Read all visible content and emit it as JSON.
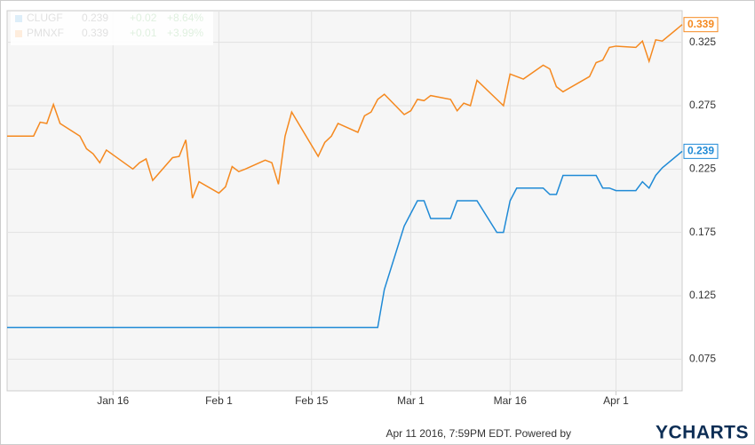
{
  "chart_data": {
    "type": "line",
    "x": [
      "2015-12-31",
      "2016-01-04",
      "2016-01-05",
      "2016-01-06",
      "2016-01-07",
      "2016-01-08",
      "2016-01-11",
      "2016-01-12",
      "2016-01-13",
      "2016-01-14",
      "2016-01-15",
      "2016-01-19",
      "2016-01-20",
      "2016-01-21",
      "2016-01-22",
      "2016-01-25",
      "2016-01-26",
      "2016-01-27",
      "2016-01-28",
      "2016-01-29",
      "2016-02-01",
      "2016-02-02",
      "2016-02-03",
      "2016-02-04",
      "2016-02-05",
      "2016-02-08",
      "2016-02-09",
      "2016-02-10",
      "2016-02-11",
      "2016-02-12",
      "2016-02-16",
      "2016-02-17",
      "2016-02-18",
      "2016-02-19",
      "2016-02-22",
      "2016-02-23",
      "2016-02-24",
      "2016-02-25",
      "2016-02-26",
      "2016-02-29",
      "2016-03-01",
      "2016-03-02",
      "2016-03-03",
      "2016-03-04",
      "2016-03-07",
      "2016-03-08",
      "2016-03-09",
      "2016-03-10",
      "2016-03-11",
      "2016-03-14",
      "2016-03-15",
      "2016-03-16",
      "2016-03-17",
      "2016-03-18",
      "2016-03-21",
      "2016-03-22",
      "2016-03-23",
      "2016-03-24",
      "2016-03-28",
      "2016-03-29",
      "2016-03-30",
      "2016-03-31",
      "2016-04-01",
      "2016-04-04",
      "2016-04-05",
      "2016-04-06",
      "2016-04-07",
      "2016-04-08",
      "2016-04-11"
    ],
    "series": [
      {
        "name": "CLUGF",
        "color": "#1f8ad6",
        "change": "+0.02",
        "change_percent": "+8.64%",
        "values": [
          0.1,
          0.1,
          0.1,
          0.1,
          0.1,
          0.1,
          0.1,
          0.1,
          0.1,
          0.1,
          0.1,
          0.1,
          0.1,
          0.1,
          0.1,
          0.1,
          0.1,
          0.1,
          0.1,
          0.1,
          0.1,
          0.1,
          0.1,
          0.1,
          0.1,
          0.1,
          0.1,
          0.1,
          0.1,
          0.1,
          0.1,
          0.1,
          0.1,
          0.1,
          0.1,
          0.1,
          0.1,
          0.1,
          0.13,
          0.18,
          0.19,
          0.2,
          0.2,
          0.186,
          0.186,
          0.2,
          0.2,
          0.2,
          0.2,
          0.175,
          0.175,
          0.2,
          0.21,
          0.21,
          0.21,
          0.205,
          0.205,
          0.22,
          0.22,
          0.22,
          0.21,
          0.21,
          0.208,
          0.208,
          0.215,
          0.21,
          0.22,
          0.226,
          0.239
        ]
      },
      {
        "name": "PMNXF",
        "color": "#f5891f",
        "change": "+0.01",
        "change_percent": "+3.99%",
        "values": [
          0.251,
          0.251,
          0.262,
          0.261,
          0.276,
          0.261,
          0.251,
          0.241,
          0.237,
          0.23,
          0.24,
          0.225,
          0.23,
          0.233,
          0.216,
          0.234,
          0.235,
          0.248,
          0.202,
          0.215,
          0.206,
          0.211,
          0.227,
          0.223,
          0.225,
          0.232,
          0.23,
          0.213,
          0.251,
          0.27,
          0.235,
          0.246,
          0.251,
          0.261,
          0.254,
          0.267,
          0.27,
          0.28,
          0.284,
          0.268,
          0.271,
          0.28,
          0.279,
          0.283,
          0.28,
          0.271,
          0.277,
          0.275,
          0.295,
          0.28,
          0.275,
          0.3,
          0.298,
          0.296,
          0.307,
          0.304,
          0.29,
          0.286,
          0.298,
          0.309,
          0.311,
          0.321,
          0.322,
          0.321,
          0.326,
          0.31,
          0.327,
          0.326,
          0.339
        ]
      }
    ],
    "xlim": [
      "2015-12-31",
      "2016-04-11"
    ],
    "xticks": [
      {
        "value": "2016-01-16",
        "label": "Jan 16"
      },
      {
        "value": "2016-02-01",
        "label": "Feb 1"
      },
      {
        "value": "2016-02-15",
        "label": "Feb 15"
      },
      {
        "value": "2016-03-01",
        "label": "Mar 1"
      },
      {
        "value": "2016-03-16",
        "label": "Mar 16"
      },
      {
        "value": "2016-04-01",
        "label": "Apr 1"
      }
    ],
    "ylim": [
      0.05,
      0.35
    ],
    "yticks": [
      0.075,
      0.125,
      0.175,
      0.225,
      0.275,
      0.325
    ],
    "grid": true,
    "legend": "top-left",
    "footer": "Apr 11 2016, 7:59PM EDT.  Powered by",
    "brand": "YCHARTS"
  }
}
